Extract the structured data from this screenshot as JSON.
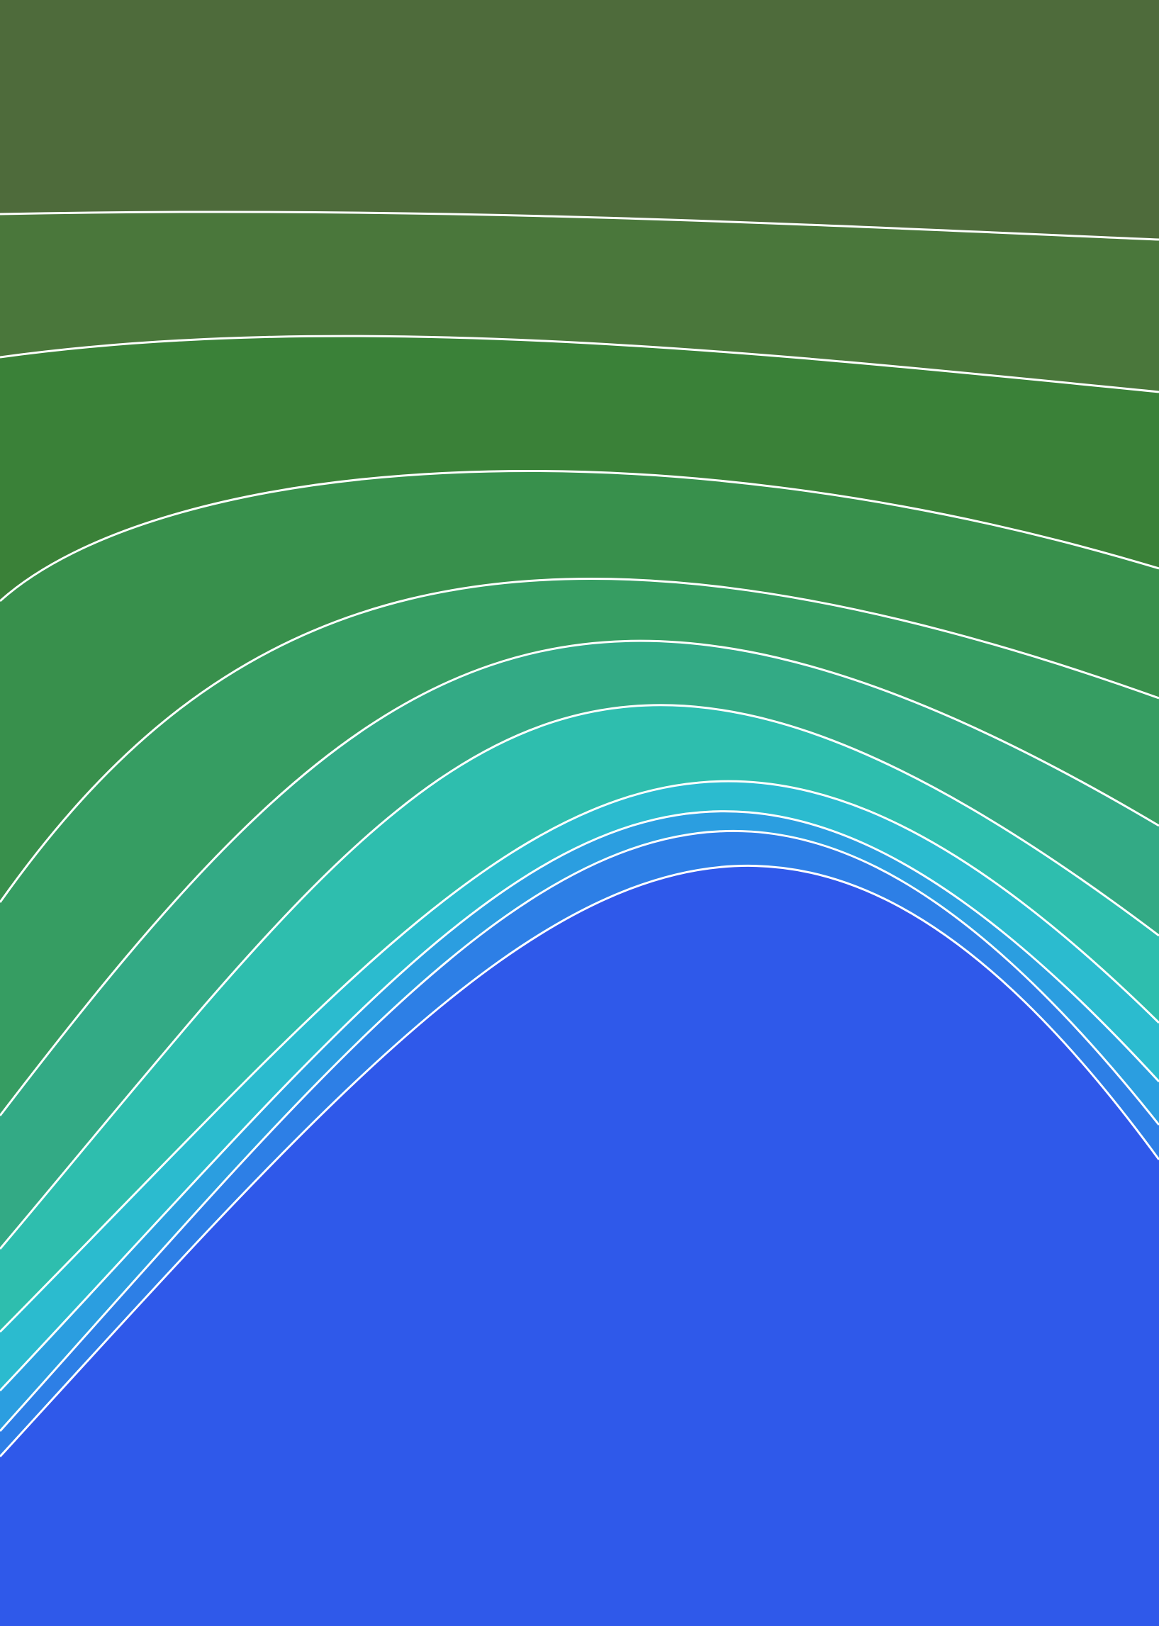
{
  "wallpaper": {
    "description_free": true,
    "band_colors": [
      "#4e6b3b",
      "#4a773b",
      "#3a8138",
      "#38904c",
      "#369d62",
      "#33aa85",
      "#2ebeae",
      "#2bbbcf",
      "#2b9ee0",
      "#2d7fe6",
      "#2f59ea"
    ],
    "divider_color": "#ffffff"
  }
}
